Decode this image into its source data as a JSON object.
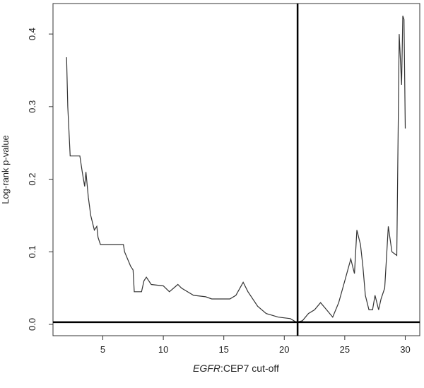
{
  "chart_data": {
    "type": "line",
    "xlabel_parts": [
      "EGFR",
      ":CEP7 cut-off"
    ],
    "ylabel": "Log-rank p-value",
    "x": [
      2.0,
      2.1,
      2.3,
      3.1,
      3.3,
      3.5,
      3.6,
      3.8,
      4.0,
      4.3,
      4.5,
      4.6,
      4.8,
      6.7,
      6.8,
      7.3,
      7.5,
      7.6,
      8.2,
      8.4,
      8.6,
      9.0,
      10.0,
      10.5,
      11.2,
      11.5,
      12.0,
      12.5,
      13.5,
      14.0,
      15.5,
      16.0,
      16.6,
      17.0,
      17.8,
      18.5,
      19.5,
      20.5,
      21.0,
      21.5,
      22.0,
      22.5,
      23.0,
      23.5,
      24.0,
      24.5,
      25.0,
      25.5,
      25.8,
      26.0,
      26.3,
      26.5,
      26.7,
      27.0,
      27.3,
      27.5,
      27.8,
      28.0,
      28.3,
      28.6,
      28.9,
      29.3,
      29.5,
      29.7,
      29.8,
      29.9,
      30.0
    ],
    "values": [
      0.368,
      0.3,
      0.232,
      0.232,
      0.21,
      0.19,
      0.21,
      0.175,
      0.15,
      0.13,
      0.135,
      0.12,
      0.11,
      0.11,
      0.1,
      0.08,
      0.075,
      0.045,
      0.045,
      0.06,
      0.065,
      0.055,
      0.053,
      0.045,
      0.055,
      0.05,
      0.045,
      0.04,
      0.038,
      0.035,
      0.035,
      0.04,
      0.058,
      0.045,
      0.025,
      0.015,
      0.01,
      0.008,
      0.003,
      0.005,
      0.015,
      0.02,
      0.03,
      0.02,
      0.01,
      0.03,
      0.06,
      0.09,
      0.07,
      0.13,
      0.11,
      0.08,
      0.04,
      0.02,
      0.02,
      0.04,
      0.02,
      0.035,
      0.05,
      0.135,
      0.1,
      0.095,
      0.4,
      0.33,
      0.425,
      0.42,
      0.27
    ],
    "color": "#333333",
    "vline": 21.1,
    "hline": 0.003,
    "xlim": [
      0.88,
      31.2
    ],
    "ylim": [
      -0.0156,
      0.442
    ],
    "xticks": [
      5,
      10,
      15,
      20,
      25,
      30
    ],
    "yticks": [
      {
        "value": 0,
        "label": "0.0"
      },
      0.1,
      0.2,
      0.3,
      0.4
    ]
  }
}
